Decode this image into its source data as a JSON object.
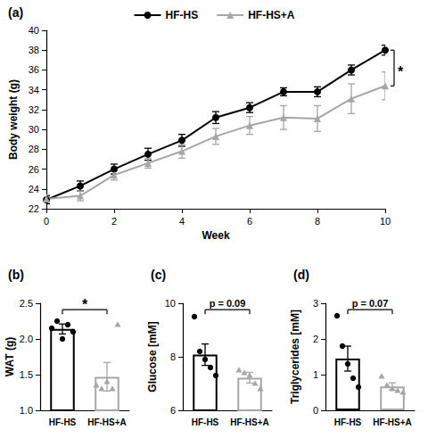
{
  "chart_data": [
    {
      "type": "line",
      "title": "(a)",
      "x_label": "Week",
      "y_label": "Body weight (g)",
      "x": [
        0,
        1,
        2,
        3,
        4,
        5,
        6,
        7,
        8,
        9,
        10
      ],
      "series": [
        {
          "name": "HF-HS",
          "color": "#000000",
          "marker": "circle",
          "values": [
            22.9,
            24.3,
            26.0,
            27.5,
            28.9,
            31.2,
            32.2,
            33.8,
            33.8,
            36.0,
            38.0
          ],
          "errors": [
            0.4,
            0.5,
            0.5,
            0.6,
            0.6,
            0.6,
            0.5,
            0.4,
            0.5,
            0.5,
            0.5
          ]
        },
        {
          "name": "HF-HS+A",
          "color": "#a6a6a6",
          "marker": "triangle",
          "values": [
            23.0,
            23.3,
            25.4,
            26.6,
            27.8,
            29.3,
            30.4,
            31.2,
            31.1,
            33.1,
            34.4
          ],
          "errors": [
            0.4,
            0.5,
            0.5,
            0.5,
            0.7,
            0.8,
            0.9,
            1.2,
            1.3,
            1.5,
            1.4
          ]
        }
      ],
      "xlim": [
        0,
        10
      ],
      "xticks": [
        0,
        2,
        4,
        6,
        8,
        10
      ],
      "ylim": [
        22,
        40
      ],
      "yticks": [
        22,
        24,
        26,
        28,
        30,
        32,
        34,
        36,
        38,
        40
      ],
      "annotation": "*",
      "legend": "top",
      "grid": false
    },
    {
      "type": "bar",
      "title": "(b)",
      "y_label": "WAT (g)",
      "series": [
        {
          "name": "HF-HS",
          "color": "#000000",
          "marker": "circle",
          "values": [
            2.14
          ],
          "errors": [
            0.07
          ],
          "points": [
            2.15,
            2.25,
            2.0,
            2.2,
            2.1
          ]
        },
        {
          "name": "HF-HS+A",
          "color": "#a6a6a6",
          "marker": "triangle",
          "values": [
            1.47
          ],
          "errors": [
            0.2
          ],
          "points": [
            1.35,
            1.3,
            1.4,
            1.3,
            2.2
          ]
        }
      ],
      "ylim": [
        1,
        2.5
      ],
      "yticks": [
        {
          "value": 1,
          "label": "1.0"
        },
        {
          "value": 1.5,
          "label": "1.5"
        },
        {
          "value": 2,
          "label": "2.0"
        },
        {
          "value": 2.5,
          "label": "2.5"
        }
      ],
      "annotation": "*",
      "grid": false
    },
    {
      "type": "bar",
      "title": "(c)",
      "y_label": "Glucose [mM]",
      "series": [
        {
          "name": "HF-HS",
          "color": "#000000",
          "marker": "circle",
          "values": [
            8.08
          ],
          "errors": [
            0.4
          ],
          "points": [
            9.5,
            8.2,
            7.9,
            7.6,
            7.3
          ]
        },
        {
          "name": "HF-HS+A",
          "color": "#a6a6a6",
          "marker": "triangle",
          "values": [
            7.22
          ],
          "errors": [
            0.2
          ],
          "points": [
            7.5,
            7.4,
            7.3,
            7.0,
            6.8
          ]
        }
      ],
      "ylim": [
        6,
        10
      ],
      "yticks": [
        6,
        8,
        10
      ],
      "annotation": "p = 0.09",
      "grid": false
    },
    {
      "type": "bar",
      "title": "(d)",
      "y_label": "Triglycerides [mM]",
      "series": [
        {
          "name": "HF-HS",
          "color": "#000000",
          "marker": "circle",
          "values": [
            1.45
          ],
          "errors": [
            0.35
          ],
          "points": [
            2.65,
            1.8,
            1.3,
            0.9,
            0.65
          ]
        },
        {
          "name": "HF-HS+A",
          "color": "#a6a6a6",
          "marker": "triangle",
          "values": [
            0.67
          ],
          "errors": [
            0.1
          ],
          "points": [
            0.95,
            0.7,
            0.6,
            0.55,
            0.5
          ]
        }
      ],
      "ylim": [
        0,
        3
      ],
      "yticks": [
        0,
        1,
        2,
        3
      ],
      "annotation": "p = 0.07",
      "grid": false
    }
  ]
}
